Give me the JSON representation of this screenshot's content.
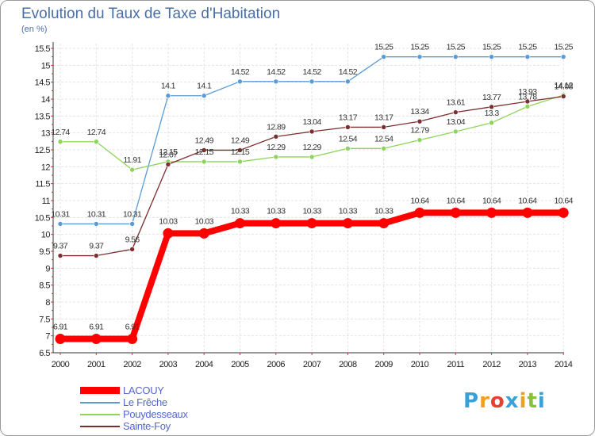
{
  "chart_data": {
    "type": "line",
    "title": "Evolution du Taux de Taxe d'Habitation",
    "subtitle": "(en %)",
    "xlabel": "",
    "ylabel": "(en %)",
    "categories": [
      "2000",
      "2001",
      "2002",
      "2003",
      "2004",
      "2005",
      "2006",
      "2007",
      "2008",
      "2009",
      "2010",
      "2011",
      "2012",
      "2013",
      "2014"
    ],
    "ylim": [
      6.5,
      15.5
    ],
    "yticks": [
      "6.5",
      "7",
      "7.5",
      "8",
      "8.5",
      "9",
      "9.5",
      "10",
      "10.5",
      "11",
      "11.5",
      "12",
      "12.5",
      "13",
      "13.5",
      "14",
      "14.5",
      "15",
      "15.5"
    ],
    "grid": true,
    "legend_position": "bottom-left",
    "series": [
      {
        "name": "LACOUY",
        "color": "#ff0000",
        "values": [
          6.91,
          6.91,
          6.91,
          10.03,
          10.03,
          10.33,
          10.33,
          10.33,
          10.33,
          10.33,
          10.64,
          10.64,
          10.64,
          10.64,
          10.64
        ],
        "labels": [
          "6.91",
          "6.91",
          "6.91",
          "10.03",
          "10.03",
          "10.33",
          "10.33",
          "10.33",
          "10.33",
          "10.33",
          "10.64",
          "10.64",
          "10.64",
          "10.64",
          "10.64"
        ]
      },
      {
        "name": "Le Frêche",
        "color": "#5b9bd5",
        "values": [
          10.31,
          10.31,
          10.31,
          14.1,
          14.1,
          14.52,
          14.52,
          14.52,
          14.52,
          15.25,
          15.25,
          15.25,
          15.25,
          15.25,
          15.25
        ],
        "labels": [
          "10.31",
          "10.31",
          "10.31",
          "14.1",
          "14.1",
          "14.52",
          "14.52",
          "14.52",
          "14.52",
          "15.25",
          "15.25",
          "15.25",
          "15.25",
          "15.25",
          "15.25"
        ]
      },
      {
        "name": "Pouydesseaux",
        "color": "#8fd45a",
        "values": [
          12.74,
          12.74,
          11.91,
          12.15,
          12.15,
          12.15,
          12.29,
          12.29,
          12.54,
          12.54,
          12.79,
          13.04,
          13.3,
          13.78,
          14.12
        ],
        "labels": [
          "12.74",
          "12.74",
          "11.91",
          "12.15",
          "12.15",
          "12.15",
          "12.29",
          "12.29",
          "12.54",
          "12.54",
          "12.79",
          "13.04",
          "13.3",
          "13.78",
          "14.12"
        ]
      },
      {
        "name": "Sainte-Foy",
        "color": "#7a2e2e",
        "values": [
          9.37,
          9.37,
          9.56,
          12.07,
          12.49,
          12.49,
          12.89,
          13.04,
          13.17,
          13.17,
          13.34,
          13.61,
          13.77,
          13.93,
          14.08
        ],
        "labels": [
          "9.37",
          "9.37",
          "9.56",
          "12.07",
          "12.49",
          "12.49",
          "12.89",
          "13.04",
          "13.17",
          "13.17",
          "13.34",
          "13.61",
          "13.77",
          "13.93",
          "14.08"
        ]
      }
    ]
  },
  "legend": {
    "items": [
      "LACOUY",
      "Le Frêche",
      "Pouydesseaux",
      "Sainte-Foy"
    ]
  },
  "logo": {
    "letters": [
      "P",
      "r",
      "o",
      "x",
      "i",
      "t",
      "i"
    ],
    "colors": [
      "#3aa0d8",
      "#f0a020",
      "#e84030",
      "#3aa0d8",
      "#f0a020",
      "#88c040",
      "#3aa0d8"
    ]
  }
}
